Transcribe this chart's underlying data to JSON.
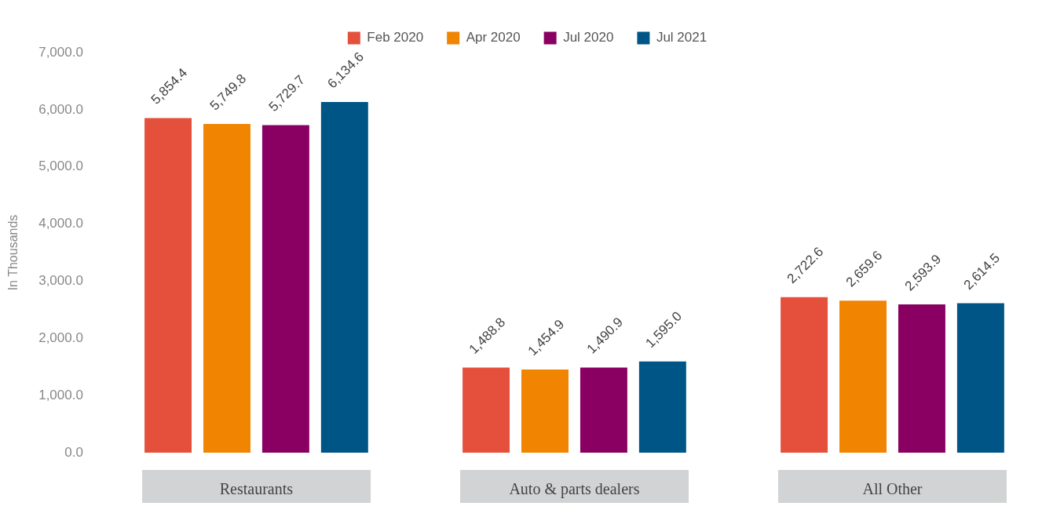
{
  "chart_data": {
    "type": "bar",
    "ylabel": "In Thousands",
    "categories": [
      "Restaurants",
      "Auto & parts dealers",
      "All Other"
    ],
    "series": [
      {
        "name": "Feb 2020",
        "color": "#e5503c",
        "values": [
          5854.4,
          1488.8,
          2722.6
        ],
        "value_labels": [
          "5,854.4",
          "1,488.8",
          "2,722.6"
        ]
      },
      {
        "name": "Apr 2020",
        "color": "#f18400",
        "values": [
          5749.8,
          1454.9,
          2659.6
        ],
        "value_labels": [
          "5,749.8",
          "1,454.9",
          "2,659.6"
        ]
      },
      {
        "name": "Jul 2020",
        "color": "#8a0062",
        "values": [
          5729.7,
          1490.9,
          2593.9
        ],
        "value_labels": [
          "5,729.7",
          "1,490.9",
          "2,593.9"
        ]
      },
      {
        "name": "Jul 2021",
        "color": "#005587",
        "values": [
          6134.6,
          1595.0,
          2614.5
        ],
        "value_labels": [
          "6,134.6",
          "1,595.0",
          "2,614.5"
        ]
      }
    ],
    "ylim": [
      0,
      7000
    ],
    "yticks": [
      {
        "value": 0,
        "label": "0.0"
      },
      {
        "value": 1000,
        "label": "1,000.0"
      },
      {
        "value": 2000,
        "label": "2,000.0"
      },
      {
        "value": 3000,
        "label": "3,000.0"
      },
      {
        "value": 4000,
        "label": "4,000.0"
      },
      {
        "value": 5000,
        "label": "5,000.0"
      },
      {
        "value": 6000,
        "label": "6,000.0"
      },
      {
        "value": 7000,
        "label": "7,000.0"
      }
    ],
    "grid": false,
    "legend": "top"
  }
}
